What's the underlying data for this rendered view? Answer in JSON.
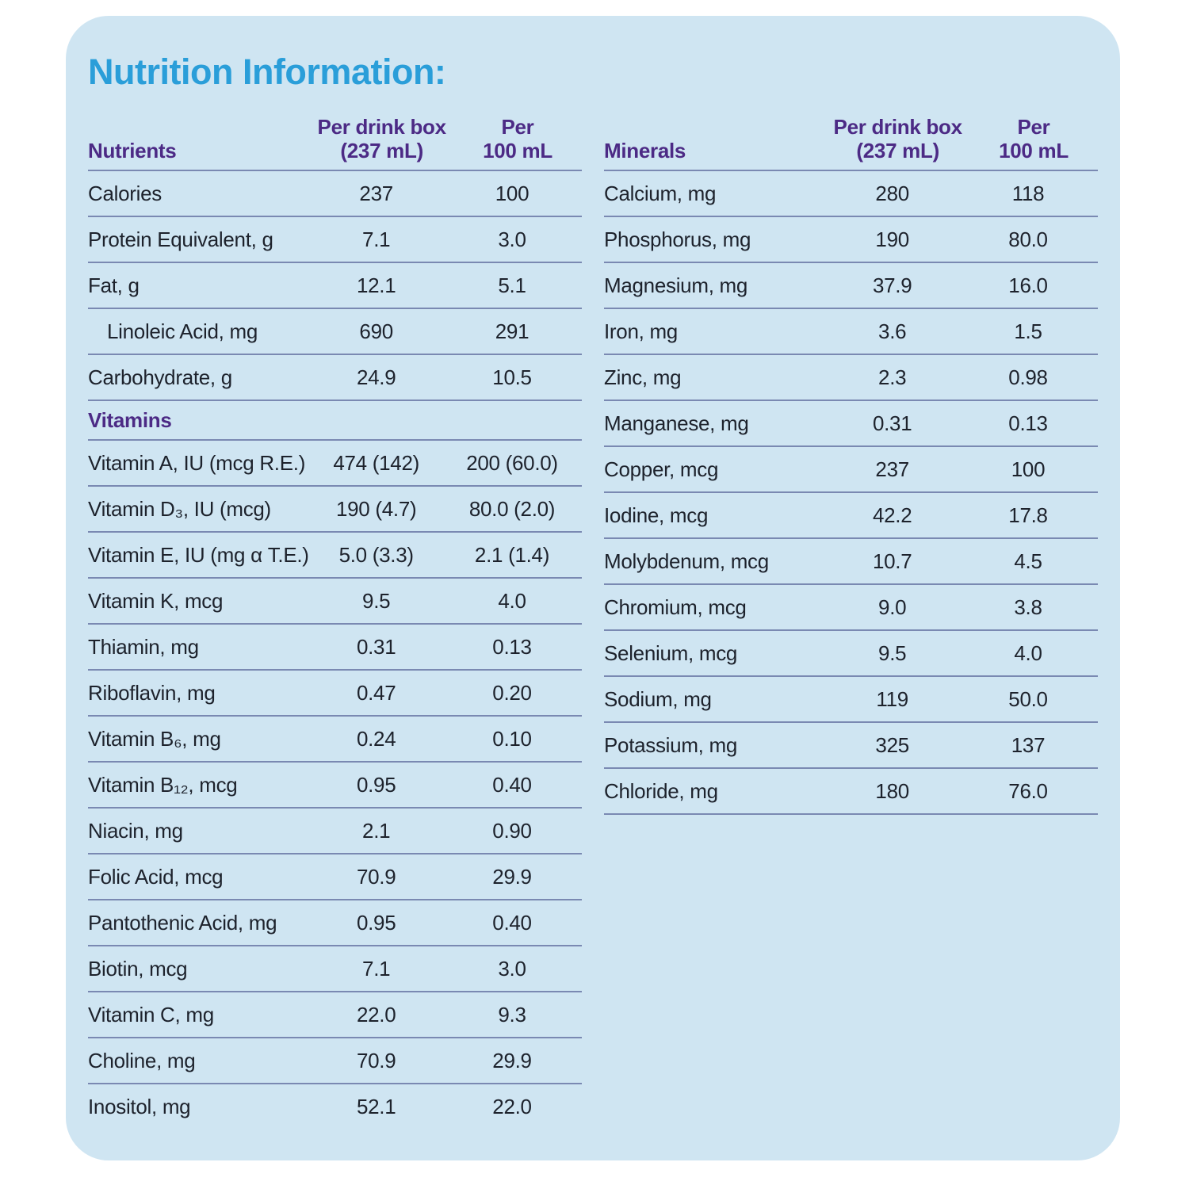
{
  "title": "Nutrition Information:",
  "colors": {
    "card_background": "#cfe5f2",
    "title_blue": "#2a9ed9",
    "header_purple": "#4c2a85",
    "body_text": "#1d222c",
    "rule_line": "#7a89b2"
  },
  "tables": [
    {
      "id": "nutrients",
      "header": {
        "label": "Nutrients",
        "per_box": [
          "Per drink box",
          "(237 mL)"
        ],
        "per_100": [
          "Per",
          "100 mL"
        ]
      },
      "rows": [
        {
          "label": "Calories",
          "per_box": "237",
          "per_100ml": "100"
        },
        {
          "label": "Protein Equivalent, g",
          "per_box": "7.1",
          "per_100ml": "3.0"
        },
        {
          "label": "Fat, g",
          "per_box": "12.1",
          "per_100ml": "5.1"
        },
        {
          "label": "Linoleic Acid, mg",
          "indent": true,
          "per_box": "690",
          "per_100ml": "291"
        },
        {
          "label": "Carbohydrate, g",
          "per_box": "24.9",
          "per_100ml": "10.5"
        },
        {
          "type": "section",
          "label": "Vitamins"
        },
        {
          "label": "Vitamin A, IU (mcg R.E.)",
          "per_box": "474 (142)",
          "per_100ml": "200 (60.0)"
        },
        {
          "label": "Vitamin D₃, IU (mcg)",
          "per_box": "190 (4.7)",
          "per_100ml": "80.0 (2.0)"
        },
        {
          "label": "Vitamin E, IU (mg α T.E.)",
          "per_box": "5.0 (3.3)",
          "per_100ml": "2.1 (1.4)"
        },
        {
          "label": "Vitamin K, mcg",
          "per_box": "9.5",
          "per_100ml": "4.0"
        },
        {
          "label": "Thiamin, mg",
          "per_box": "0.31",
          "per_100ml": "0.13"
        },
        {
          "label": "Riboflavin, mg",
          "per_box": "0.47",
          "per_100ml": "0.20"
        },
        {
          "label": "Vitamin B₆, mg",
          "per_box": "0.24",
          "per_100ml": "0.10"
        },
        {
          "label": "Vitamin B₁₂, mcg",
          "per_box": "0.95",
          "per_100ml": "0.40"
        },
        {
          "label": "Niacin, mg",
          "per_box": "2.1",
          "per_100ml": "0.90"
        },
        {
          "label": "Folic Acid, mcg",
          "per_box": "70.9",
          "per_100ml": "29.9"
        },
        {
          "label": "Pantothenic Acid, mg",
          "per_box": "0.95",
          "per_100ml": "0.40"
        },
        {
          "label": "Biotin, mcg",
          "per_box": "7.1",
          "per_100ml": "3.0"
        },
        {
          "label": "Vitamin C, mg",
          "per_box": "22.0",
          "per_100ml": "9.3"
        },
        {
          "label": "Choline, mg",
          "per_box": "70.9",
          "per_100ml": "29.9"
        },
        {
          "label": "Inositol, mg",
          "per_box": "52.1",
          "per_100ml": "22.0"
        }
      ]
    },
    {
      "id": "minerals",
      "header": {
        "label": "Minerals",
        "per_box": [
          "Per drink box",
          "(237 mL)"
        ],
        "per_100": [
          "Per",
          "100 mL"
        ]
      },
      "rows": [
        {
          "label": "Calcium, mg",
          "per_box": "280",
          "per_100ml": "118"
        },
        {
          "label": "Phosphorus, mg",
          "per_box": "190",
          "per_100ml": "80.0"
        },
        {
          "label": "Magnesium, mg",
          "per_box": "37.9",
          "per_100ml": "16.0"
        },
        {
          "label": "Iron, mg",
          "per_box": "3.6",
          "per_100ml": "1.5"
        },
        {
          "label": "Zinc, mg",
          "per_box": "2.3",
          "per_100ml": "0.98"
        },
        {
          "label": "Manganese, mg",
          "per_box": "0.31",
          "per_100ml": "0.13"
        },
        {
          "label": "Copper, mcg",
          "per_box": "237",
          "per_100ml": "100"
        },
        {
          "label": "Iodine, mcg",
          "per_box": "42.2",
          "per_100ml": "17.8"
        },
        {
          "label": "Molybdenum, mcg",
          "per_box": "10.7",
          "per_100ml": "4.5"
        },
        {
          "label": "Chromium, mcg",
          "per_box": "9.0",
          "per_100ml": "3.8"
        },
        {
          "label": "Selenium, mcg",
          "per_box": "9.5",
          "per_100ml": "4.0"
        },
        {
          "label": "Sodium, mg",
          "per_box": "119",
          "per_100ml": "50.0"
        },
        {
          "label": "Potassium, mg",
          "per_box": "325",
          "per_100ml": "137"
        },
        {
          "label": "Chloride, mg",
          "per_box": "180",
          "per_100ml": "76.0"
        }
      ]
    }
  ]
}
